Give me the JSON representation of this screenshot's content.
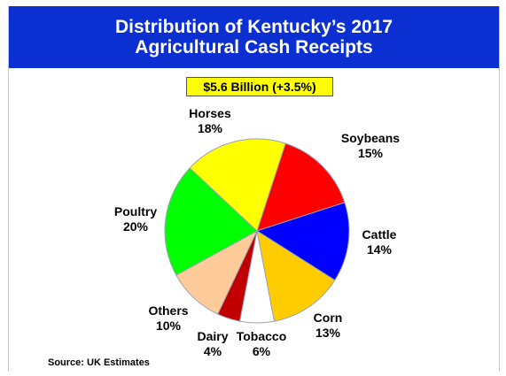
{
  "header": {
    "title_line1": "Distribution of Kentucky’s 2017",
    "title_line2": "Agricultural Cash Receipts"
  },
  "badge": {
    "text": "$5.6 Billion (+3.5%)"
  },
  "source": "Source: UK Estimates",
  "chart_data": {
    "type": "pie",
    "title": "Distribution of Kentucky’s 2017 Agricultural Cash Receipts",
    "subtitle": "$5.6 Billion (+3.5%)",
    "slices": [
      {
        "label": "Soybeans",
        "value": 15,
        "value_text": "15%",
        "color": "#ff0000"
      },
      {
        "label": "Cattle",
        "value": 14,
        "value_text": "14%",
        "color": "#0000ff"
      },
      {
        "label": "Corn",
        "value": 13,
        "value_text": "13%",
        "color": "#ffcc00"
      },
      {
        "label": "Tobacco",
        "value": 6,
        "value_text": "6%",
        "color": "#ffffff"
      },
      {
        "label": "Dairy",
        "value": 4,
        "value_text": "4%",
        "color": "#c00000"
      },
      {
        "label": "Others",
        "value": 10,
        "value_text": "10%",
        "color": "#ffcc99"
      },
      {
        "label": "Poultry",
        "value": 20,
        "value_text": "20%",
        "color": "#00ff00"
      },
      {
        "label": "Horses",
        "value": 18,
        "value_text": "18%",
        "color": "#ffff00"
      }
    ],
    "legend": "none",
    "data_labels": "outside"
  }
}
